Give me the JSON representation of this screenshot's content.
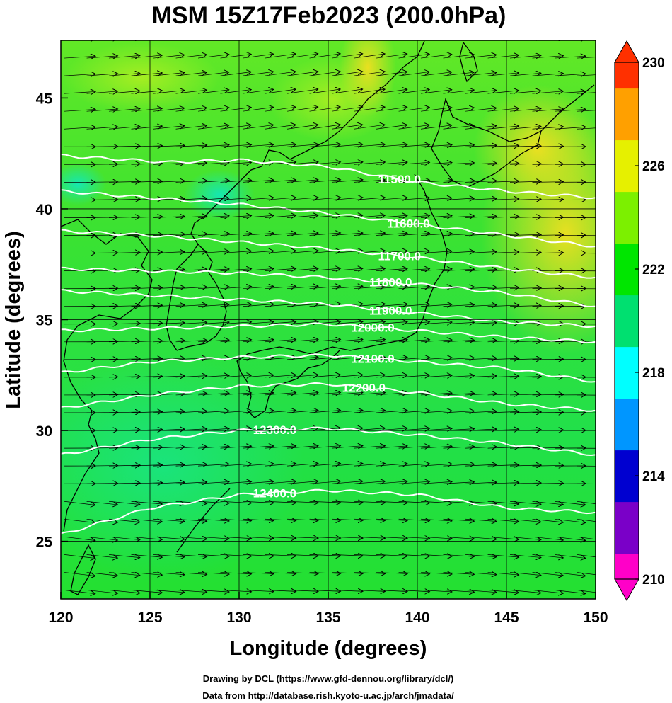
{
  "chart_data": {
    "type": "heatmap",
    "title": "MSM 15Z17Feb2023 (200.0hPa)",
    "xlabel": "Longitude (degrees)",
    "ylabel": "Latitude  (degrees)",
    "xlim": [
      120,
      150
    ],
    "ylim": [
      22.4,
      47.6
    ],
    "x_ticks": [
      "120",
      "125",
      "130",
      "135",
      "140",
      "145",
      "150"
    ],
    "y_ticks": [
      "25",
      "30",
      "35",
      "40",
      "45"
    ],
    "grid": true,
    "colorbar": {
      "range": [
        210,
        230
      ],
      "ticks": [
        "210",
        "214",
        "218",
        "222",
        "226",
        "230"
      ],
      "colors": [
        "#ff00c8",
        "#7a00c8",
        "#0000d0",
        "#0096ff",
        "#00ffff",
        "#00e070",
        "#00e600",
        "#7cf000",
        "#e6f000",
        "#ffa000",
        "#ff3000"
      ]
    },
    "contours": [
      {
        "label": "11500.0",
        "level": 11500
      },
      {
        "label": "11600.0",
        "level": 11600
      },
      {
        "label": "11700.0",
        "level": 11700
      },
      {
        "label": "11800.0",
        "level": 11800
      },
      {
        "label": "11900.0",
        "level": 11900
      },
      {
        "label": "12000.0",
        "level": 12000
      },
      {
        "label": "12100.0",
        "level": 12100
      },
      {
        "label": "12200.0",
        "level": 12200
      },
      {
        "label": "12300.0",
        "level": 12300
      },
      {
        "label": "12400.0",
        "level": 12400
      }
    ],
    "wind_vectors": "streamline arrows, predominantly westerly, over the whole domain"
  },
  "credits": {
    "line1": "Drawing by DCL (https://www.gfd-dennou.org/library/dcl/)",
    "line2": "Data from http://database.rish.kyoto-u.ac.jp/arch/jmadata/"
  },
  "colors": {
    "background_field": "#33e233",
    "warm_region": "#e0e020",
    "cool_region": "#20e090",
    "contour": "#ffffff",
    "vector": "#000000"
  }
}
